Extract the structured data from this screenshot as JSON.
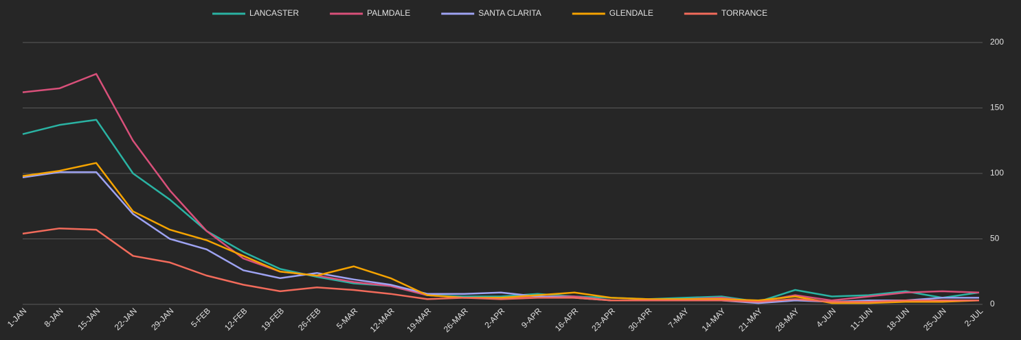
{
  "chart_data": {
    "type": "line",
    "categories": [
      "1-JAN",
      "8-JAN",
      "15-JAN",
      "22-JAN",
      "29-JAN",
      "5-FEB",
      "12-FEB",
      "19-FEB",
      "26-FEB",
      "5-MAR",
      "12-MAR",
      "19-MAR",
      "26-MAR",
      "2-APR",
      "9-APR",
      "16-APR",
      "23-APR",
      "30-APR",
      "7-MAY",
      "14-MAY",
      "21-MAY",
      "28-MAY",
      "4-JUN",
      "11-JUN",
      "18-JUN",
      "25-JUN",
      "2-JUL"
    ],
    "series": [
      {
        "name": "LANCASTER",
        "color": "#2ab3a3",
        "values": [
          130,
          137,
          141,
          100,
          80,
          56,
          40,
          27,
          21,
          16,
          14,
          7,
          6,
          6,
          8,
          6,
          5,
          4,
          5,
          6,
          2,
          11,
          6,
          7,
          10,
          5,
          9
        ]
      },
      {
        "name": "PALMDALE",
        "color": "#d9507a",
        "values": [
          162,
          165,
          176,
          125,
          87,
          56,
          35,
          25,
          22,
          17,
          14,
          7,
          5,
          5,
          6,
          6,
          3,
          3,
          4,
          5,
          2,
          7,
          3,
          6,
          9,
          10,
          9
        ]
      },
      {
        "name": "SANTA CLARITA",
        "color": "#9ea3f2",
        "values": [
          97,
          101,
          101,
          69,
          50,
          42,
          26,
          20,
          24,
          19,
          15,
          8,
          8,
          9,
          6,
          5,
          3,
          3,
          3,
          3,
          1,
          3,
          2,
          3,
          3,
          5,
          5
        ]
      },
      {
        "name": "GLENDALE",
        "color": "#f5a300",
        "values": [
          98,
          102,
          108,
          71,
          57,
          49,
          37,
          25,
          22,
          29,
          20,
          7,
          5,
          5,
          7,
          9,
          5,
          4,
          4,
          4,
          3,
          6,
          1,
          1,
          2,
          2,
          3
        ]
      },
      {
        "name": "TORRANCE",
        "color": "#f26b5b",
        "values": [
          54,
          58,
          57,
          37,
          32,
          22,
          15,
          10,
          13,
          11,
          8,
          4,
          5,
          4,
          5,
          5,
          3,
          3,
          3,
          3,
          2,
          4,
          2,
          2,
          3,
          3,
          3
        ]
      }
    ],
    "ylim": [
      0,
      200
    ],
    "yticks": [
      0,
      50,
      100,
      150,
      200
    ],
    "grid": true,
    "legend": "top"
  }
}
